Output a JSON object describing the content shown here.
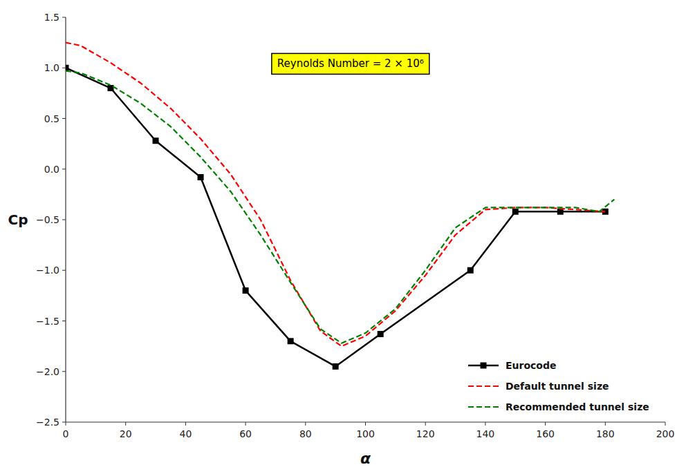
{
  "chart_data": {
    "type": "line",
    "x_label": "α",
    "y_label": "Cp",
    "annotation": "Reynolds Number = 2 × 10⁶",
    "xlim": [
      0,
      200
    ],
    "ylim": [
      -2.5,
      1.5
    ],
    "xticks": [
      0,
      20,
      40,
      60,
      80,
      100,
      120,
      140,
      160,
      180,
      200
    ],
    "yticks": [
      {
        "value": -2.5,
        "label": "−2.5"
      },
      {
        "value": -2.0,
        "label": "−2.0"
      },
      {
        "value": -1.5,
        "label": "−1.5"
      },
      {
        "value": -1.0,
        "label": "−1.0"
      },
      {
        "value": -0.5,
        "label": "−0.5"
      },
      {
        "value": 0.0,
        "label": "0.0"
      },
      {
        "value": 0.5,
        "label": "0.5"
      },
      {
        "value": 1.0,
        "label": "1.0"
      },
      {
        "value": 1.5,
        "label": "1.5"
      }
    ],
    "grid": false,
    "legend": "lower right",
    "series": [
      {
        "name": "Eurocode",
        "color": "#000000",
        "marker": "square",
        "line_style": "solid",
        "x": [
          0,
          15,
          30,
          45,
          60,
          75,
          90,
          105,
          135,
          150,
          165,
          180
        ],
        "values": [
          1.0,
          0.8,
          0.28,
          -0.08,
          -1.2,
          -1.7,
          -1.95,
          -1.63,
          -1.0,
          -0.42,
          -0.42,
          -0.42
        ]
      },
      {
        "name": "Default tunnel size",
        "color": "#ff0000",
        "line_style": "dashed",
        "x": [
          0,
          5,
          15,
          25,
          35,
          45,
          55,
          65,
          75,
          85,
          92,
          100,
          110,
          120,
          130,
          140,
          150,
          160,
          170,
          180
        ],
        "values": [
          1.25,
          1.22,
          1.05,
          0.85,
          0.6,
          0.3,
          -0.05,
          -0.5,
          -1.1,
          -1.6,
          -1.75,
          -1.65,
          -1.4,
          -1.05,
          -0.65,
          -0.4,
          -0.38,
          -0.38,
          -0.4,
          -0.42
        ]
      },
      {
        "name": "Recommended tunnel size",
        "color": "#008000",
        "line_style": "dashed",
        "x": [
          0,
          5,
          15,
          25,
          35,
          45,
          55,
          65,
          75,
          85,
          92,
          100,
          110,
          120,
          130,
          140,
          150,
          160,
          170,
          178,
          183
        ],
        "values": [
          0.97,
          0.95,
          0.83,
          0.65,
          0.42,
          0.12,
          -0.22,
          -0.65,
          -1.12,
          -1.58,
          -1.72,
          -1.62,
          -1.38,
          -1.0,
          -0.58,
          -0.38,
          -0.38,
          -0.38,
          -0.38,
          -0.42,
          -0.3
        ]
      }
    ]
  }
}
